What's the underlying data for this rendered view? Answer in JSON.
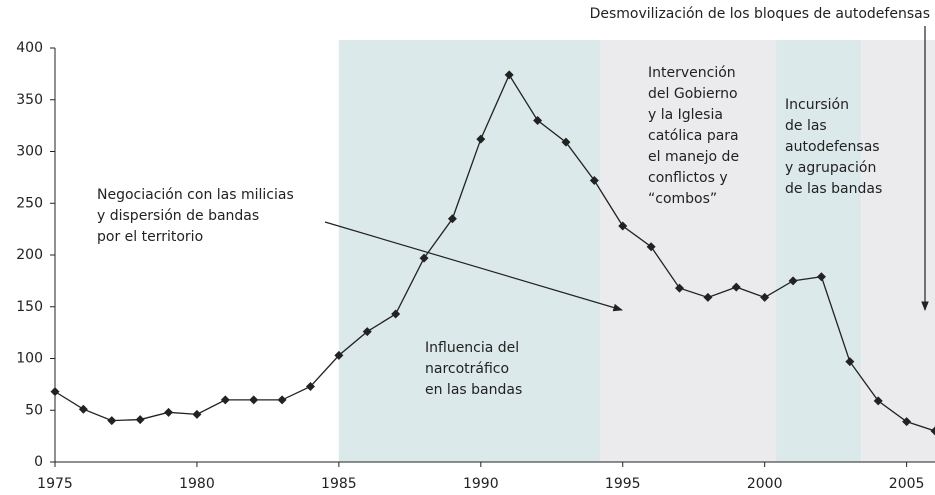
{
  "chart_data": {
    "type": "line",
    "x": [
      1975,
      1976,
      1977,
      1978,
      1979,
      1980,
      1981,
      1982,
      1983,
      1984,
      1985,
      1986,
      1987,
      1988,
      1989,
      1990,
      1991,
      1992,
      1993,
      1994,
      1995,
      1996,
      1997,
      1998,
      1999,
      2000,
      2001,
      2002,
      2003,
      2004,
      2005,
      2006
    ],
    "values": [
      68,
      51,
      40,
      41,
      48,
      46,
      60,
      60,
      60,
      73,
      103,
      126,
      143,
      197,
      235,
      312,
      374,
      330,
      309,
      272,
      228,
      208,
      168,
      159,
      169,
      159,
      175,
      179,
      97,
      59,
      39,
      30
    ],
    "color": "#222222",
    "xlim": [
      1975,
      2006
    ],
    "xticks": [
      1975,
      1980,
      1985,
      1990,
      1995,
      2000,
      2005
    ],
    "ylim": [
      0,
      400
    ],
    "yticks": [
      0,
      50,
      100,
      150,
      200,
      250,
      300,
      350,
      400
    ],
    "shaded_periods": [
      {
        "start": 1985,
        "end": 1994.2,
        "color": "#dce9ea"
      },
      {
        "start": 1994.2,
        "end": 2000.4,
        "color": "#ebebed"
      },
      {
        "start": 2000.4,
        "end": 2003.4,
        "color": "#dce9ea"
      },
      {
        "start": 2003.4,
        "end": 2006,
        "color": "#ebebed"
      }
    ],
    "annotations": [
      [
        "Negociación con las milicias",
        "y dispersión de bandas",
        "por el territorio"
      ],
      [
        "Influencia del",
        "narcotráfico",
        "en las bandas"
      ],
      [
        "Intervención",
        "del Gobierno",
        "y la Iglesia",
        "católica para",
        "el manejo de",
        "conflictos y",
        "“combos”"
      ],
      [
        "Incursión",
        "de las",
        "autodefensas",
        "y agrupación",
        "de las bandas"
      ],
      [
        "Desmovilización de los bloques de autodefensas"
      ]
    ]
  }
}
